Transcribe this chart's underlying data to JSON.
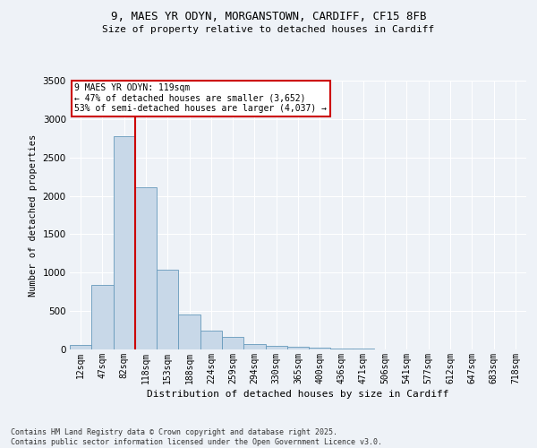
{
  "title_line1": "9, MAES YR ODYN, MORGANSTOWN, CARDIFF, CF15 8FB",
  "title_line2": "Size of property relative to detached houses in Cardiff",
  "xlabel": "Distribution of detached houses by size in Cardiff",
  "ylabel": "Number of detached properties",
  "bar_labels": [
    "12sqm",
    "47sqm",
    "82sqm",
    "118sqm",
    "153sqm",
    "188sqm",
    "224sqm",
    "259sqm",
    "294sqm",
    "330sqm",
    "365sqm",
    "400sqm",
    "436sqm",
    "471sqm",
    "506sqm",
    "541sqm",
    "577sqm",
    "612sqm",
    "647sqm",
    "683sqm",
    "718sqm"
  ],
  "bar_values": [
    55,
    840,
    2780,
    2110,
    1040,
    460,
    250,
    165,
    75,
    50,
    35,
    20,
    15,
    10,
    5,
    3,
    2,
    1,
    1,
    1,
    1
  ],
  "bar_color": "#c8d8e8",
  "bar_edge_color": "#6699bb",
  "vline_x_idx": 3,
  "vline_color": "#cc0000",
  "annotation_title": "9 MAES YR ODYN: 119sqm",
  "annotation_line1": "← 47% of detached houses are smaller (3,652)",
  "annotation_line2": "53% of semi-detached houses are larger (4,037) →",
  "annotation_box_color": "#cc0000",
  "ylim": [
    0,
    3500
  ],
  "yticks": [
    0,
    500,
    1000,
    1500,
    2000,
    2500,
    3000,
    3500
  ],
  "background_color": "#eef2f7",
  "grid_color": "#ffffff",
  "footer_line1": "Contains HM Land Registry data © Crown copyright and database right 2025.",
  "footer_line2": "Contains public sector information licensed under the Open Government Licence v3.0."
}
